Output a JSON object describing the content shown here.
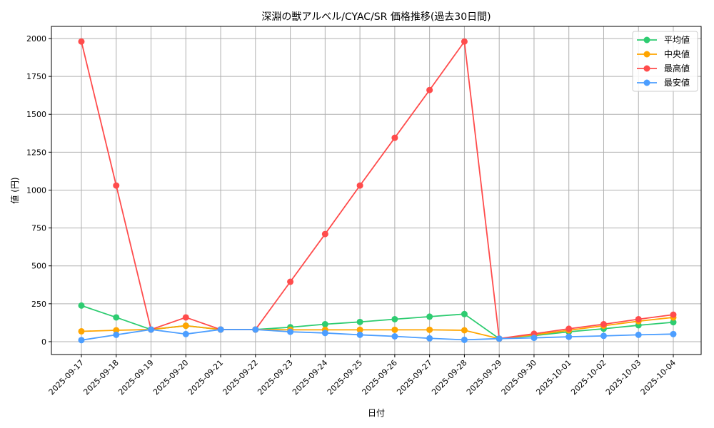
{
  "chart_data": {
    "type": "line",
    "title": "深淵の獣アルベル/CYAC/SR 価格推移(過去30日間)",
    "xlabel": "日付",
    "ylabel": "値 (円)",
    "ylim": [
      -85,
      2080
    ],
    "yticks": [
      0,
      250,
      500,
      750,
      1000,
      1250,
      1500,
      1750,
      2000
    ],
    "grid": true,
    "legend_position": "top-right",
    "categories": [
      "2025-09-17",
      "2025-09-18",
      "2025-09-19",
      "2025-09-20",
      "2025-09-21",
      "2025-09-22",
      "2025-09-23",
      "2025-09-24",
      "2025-09-25",
      "2025-09-26",
      "2025-09-27",
      "2025-09-28",
      "2025-09-29",
      "2025-09-30",
      "2025-10-01",
      "2025-10-02",
      "2025-10-03",
      "2025-10-04"
    ],
    "series": [
      {
        "name": "平均値",
        "color": "#2ecc71",
        "values": [
          238,
          160,
          80,
          105,
          80,
          80,
          95,
          115,
          130,
          148,
          165,
          182,
          20,
          40,
          65,
          85,
          108,
          128
        ]
      },
      {
        "name": "中央値",
        "color": "#ffa500",
        "values": [
          68,
          75,
          80,
          105,
          80,
          80,
          78,
          78,
          78,
          78,
          78,
          75,
          20,
          45,
          75,
          105,
          135,
          160
        ]
      },
      {
        "name": "最高値",
        "color": "#ff4c4c",
        "values": [
          1980,
          1030,
          80,
          160,
          80,
          80,
          395,
          710,
          1030,
          1345,
          1660,
          1980,
          20,
          52,
          85,
          115,
          148,
          178
        ]
      },
      {
        "name": "最安値",
        "color": "#4c9eff",
        "values": [
          10,
          45,
          80,
          50,
          80,
          80,
          65,
          57,
          45,
          35,
          22,
          12,
          20,
          25,
          32,
          38,
          45,
          50
        ]
      }
    ]
  }
}
